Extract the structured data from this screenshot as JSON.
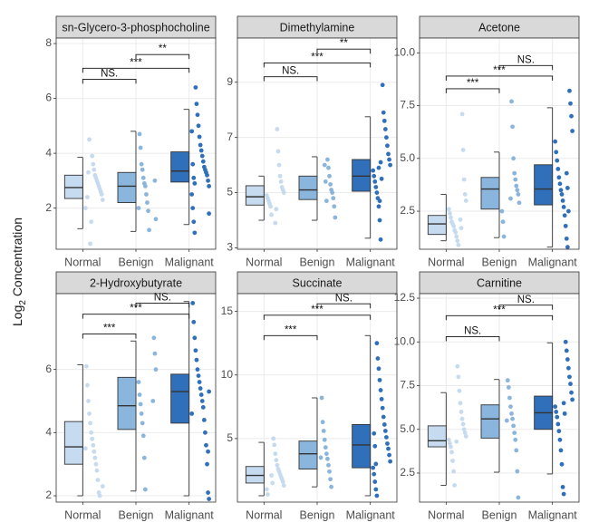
{
  "y_label": [
    "Log",
    "2",
    " Concentration"
  ],
  "chart_data": [
    {
      "type": "box",
      "title": "sn-Glycero-3-phosphocholine",
      "categories": [
        "Normal",
        "Benign",
        "Malignant"
      ],
      "ylim": [
        0.5,
        8.2
      ],
      "yticks": [
        2,
        4,
        6,
        8
      ],
      "groups": [
        {
          "color": "#c6dbef",
          "min": 1.25,
          "q1": 2.35,
          "median": 2.75,
          "q3": 3.2,
          "max": 3.85,
          "points": [
            2.0,
            2.3,
            2.5,
            2.6,
            2.7,
            2.8,
            2.9,
            3.0,
            3.1,
            3.2,
            3.4,
            3.6,
            3.9,
            1.5,
            0.7,
            4.5,
            3.3,
            2.4
          ]
        },
        {
          "color": "#8ab5dc",
          "min": 1.15,
          "q1": 2.2,
          "median": 2.8,
          "q3": 3.3,
          "max": 4.8,
          "points": [
            1.2,
            1.9,
            2.2,
            2.5,
            2.8,
            2.9,
            3.1,
            3.4,
            3.6,
            4.2,
            4.7,
            2.0,
            1.6,
            3.0
          ]
        },
        {
          "color": "#3070bb",
          "min": 1.4,
          "q1": 2.95,
          "median": 3.35,
          "q3": 4.05,
          "max": 5.6,
          "points": [
            1.1,
            1.5,
            2.0,
            2.5,
            2.8,
            3.0,
            3.2,
            3.3,
            3.4,
            3.5,
            3.7,
            3.9,
            4.1,
            4.3,
            4.6,
            5.0,
            5.4,
            5.8,
            6.4,
            2.9,
            3.1,
            3.6,
            4.8,
            1.8
          ]
        }
      ],
      "comparisons": [
        {
          "from": 0,
          "to": 1,
          "y": 6.7,
          "label": "NS."
        },
        {
          "from": 0,
          "to": 2,
          "y": 7.1,
          "label": "***"
        },
        {
          "from": 1,
          "to": 2,
          "y": 7.6,
          "label": "**"
        }
      ]
    },
    {
      "type": "box",
      "title": "Dimethylamine",
      "categories": [
        "Normal",
        "Benign",
        "Malignant"
      ],
      "ylim": [
        2.95,
        10.6
      ],
      "yticks": [
        3,
        5,
        7,
        9
      ],
      "groups": [
        {
          "color": "#c6dbef",
          "min": 4.0,
          "q1": 4.55,
          "median": 4.85,
          "q3": 5.25,
          "max": 5.6,
          "points": [
            4.2,
            4.5,
            4.6,
            4.7,
            4.8,
            4.9,
            5.0,
            5.1,
            5.2,
            5.4,
            5.6,
            6.0,
            6.5,
            7.3,
            4.4,
            3.9
          ]
        },
        {
          "color": "#8ab5dc",
          "min": 4.0,
          "q1": 4.75,
          "median": 5.1,
          "q3": 5.6,
          "max": 6.3,
          "points": [
            4.1,
            4.5,
            4.8,
            5.0,
            5.1,
            5.3,
            5.6,
            5.9,
            6.2,
            4.7,
            5.4,
            6.0
          ]
        },
        {
          "color": "#3070bb",
          "min": 3.35,
          "q1": 5.05,
          "median": 5.6,
          "q3": 6.2,
          "max": 7.75,
          "points": [
            3.3,
            4.0,
            4.5,
            4.8,
            5.0,
            5.2,
            5.4,
            5.6,
            5.8,
            6.0,
            6.2,
            6.4,
            6.7,
            7.0,
            7.3,
            7.6,
            7.9,
            8.9,
            5.5,
            6.1,
            4.7,
            5.9
          ]
        }
      ],
      "comparisons": [
        {
          "from": 0,
          "to": 1,
          "y": 9.2,
          "label": "NS."
        },
        {
          "from": 0,
          "to": 2,
          "y": 9.7,
          "label": "***"
        },
        {
          "from": 1,
          "to": 2,
          "y": 10.2,
          "label": "**"
        }
      ]
    },
    {
      "type": "box",
      "title": "Acetone",
      "categories": [
        "Normal",
        "Benign",
        "Malignant"
      ],
      "ylim": [
        0.7,
        10.7
      ],
      "yticks": [
        2.5,
        {
          "value": 5,
          "label": "5.0"
        },
        7.5,
        {
          "value": 10,
          "label": "10.0"
        }
      ],
      "groups": [
        {
          "color": "#c6dbef",
          "min": 1.1,
          "q1": 1.4,
          "median": 1.9,
          "q3": 2.3,
          "max": 3.3,
          "points": [
            0.9,
            1.1,
            1.3,
            1.5,
            1.6,
            1.8,
            1.9,
            2.0,
            2.2,
            2.4,
            2.6,
            3.0,
            3.3,
            4.0,
            5.4,
            7.1,
            1.7,
            2.1
          ]
        },
        {
          "color": "#8ab5dc",
          "min": 1.25,
          "q1": 2.6,
          "median": 3.55,
          "q3": 4.1,
          "max": 5.3,
          "points": [
            1.3,
            2.0,
            2.5,
            2.9,
            3.3,
            3.5,
            3.7,
            4.0,
            4.3,
            5.0,
            6.5,
            7.7,
            3.1
          ]
        },
        {
          "color": "#3070bb",
          "min": 0.8,
          "q1": 2.8,
          "median": 3.55,
          "q3": 4.7,
          "max": 7.4,
          "points": [
            0.8,
            1.2,
            1.8,
            2.3,
            2.7,
            3.0,
            3.3,
            3.5,
            3.8,
            4.1,
            4.5,
            4.9,
            5.3,
            5.8,
            6.3,
            7.0,
            7.6,
            8.2,
            2.5,
            3.6,
            4.3
          ]
        }
      ],
      "comparisons": [
        {
          "from": 0,
          "to": 1,
          "y": 8.3,
          "label": "***"
        },
        {
          "from": 0,
          "to": 2,
          "y": 8.9,
          "label": "***"
        },
        {
          "from": 1,
          "to": 2,
          "y": 9.4,
          "label": "NS."
        }
      ]
    },
    {
      "type": "box",
      "title": "2-Hydroxybutyrate",
      "categories": [
        "Normal",
        "Benign",
        "Malignant"
      ],
      "ylim": [
        1.8,
        8.4
      ],
      "yticks": [
        2,
        4,
        6
      ],
      "groups": [
        {
          "color": "#c6dbef",
          "min": 2.0,
          "q1": 3.0,
          "median": 3.55,
          "q3": 4.35,
          "max": 6.15,
          "points": [
            2.0,
            2.1,
            2.5,
            2.8,
            3.0,
            3.2,
            3.4,
            3.6,
            3.8,
            4.0,
            4.3,
            4.6,
            5.0,
            5.5,
            6.1,
            3.5,
            2.3
          ]
        },
        {
          "color": "#8ab5dc",
          "min": 2.15,
          "q1": 4.1,
          "median": 4.85,
          "q3": 5.75,
          "max": 6.9,
          "points": [
            2.2,
            3.2,
            3.9,
            4.3,
            4.6,
            4.9,
            5.2,
            5.6,
            6.0,
            6.5,
            7.0,
            5.0
          ]
        },
        {
          "color": "#3070bb",
          "min": 2.0,
          "q1": 4.3,
          "median": 5.3,
          "q3": 5.85,
          "max": 8.15,
          "points": [
            1.9,
            2.1,
            3.0,
            3.6,
            4.0,
            4.4,
            4.8,
            5.0,
            5.2,
            5.4,
            5.6,
            5.8,
            6.0,
            6.3,
            6.6,
            7.0,
            7.5,
            8.1,
            4.6,
            5.3,
            3.4
          ]
        }
      ],
      "comparisons": [
        {
          "from": 0,
          "to": 1,
          "y": 7.12,
          "label": "***"
        },
        {
          "from": 0,
          "to": 2,
          "y": 7.75,
          "label": "***"
        },
        {
          "from": 1,
          "to": 2,
          "y": 8.1,
          "label": "NS."
        }
      ]
    },
    {
      "type": "box",
      "title": "Succinate",
      "categories": [
        "Normal",
        "Benign",
        "Malignant"
      ],
      "ylim": [
        0,
        16.4
      ],
      "yticks": [
        5,
        10,
        15
      ],
      "groups": [
        {
          "color": "#c6dbef",
          "min": 0.5,
          "q1": 1.5,
          "median": 2.1,
          "q3": 2.8,
          "max": 4.7,
          "points": [
            0.6,
            1.0,
            1.3,
            1.6,
            1.8,
            2.0,
            2.2,
            2.4,
            2.6,
            2.9,
            3.3,
            3.8,
            4.5,
            5.0,
            1.5,
            2.1
          ]
        },
        {
          "color": "#8ab5dc",
          "min": 1.2,
          "q1": 2.6,
          "median": 3.8,
          "q3": 4.8,
          "max": 8.2,
          "points": [
            1.2,
            1.8,
            2.4,
            2.9,
            3.4,
            3.8,
            4.3,
            4.9,
            5.6,
            6.3,
            8.2,
            3.5
          ]
        },
        {
          "color": "#3070bb",
          "min": 0.5,
          "q1": 2.7,
          "median": 4.5,
          "q3": 6.1,
          "max": 13.1,
          "points": [
            0.5,
            1.0,
            1.6,
            2.2,
            2.7,
            3.2,
            3.7,
            4.2,
            4.6,
            5.1,
            5.6,
            6.1,
            6.7,
            7.4,
            8.1,
            8.8,
            9.6,
            10.5,
            11.3,
            12.5,
            3.0,
            4.4,
            5.4
          ]
        }
      ],
      "comparisons": [
        {
          "from": 0,
          "to": 1,
          "y": 13.1,
          "label": "***"
        },
        {
          "from": 0,
          "to": 2,
          "y": 14.7,
          "label": "***"
        },
        {
          "from": 1,
          "to": 2,
          "y": 15.6,
          "label": "NS."
        }
      ]
    },
    {
      "type": "box",
      "title": "Carnitine",
      "categories": [
        "Normal",
        "Benign",
        "Malignant"
      ],
      "ylim": [
        0.84,
        12.76
      ],
      "yticks": [
        2.5,
        {
          "value": 5,
          "label": "5.0"
        },
        7.5,
        {
          "value": 10,
          "label": "10.0"
        },
        12.5
      ],
      "groups": [
        {
          "color": "#c6dbef",
          "min": 1.8,
          "q1": 4.0,
          "median": 4.35,
          "q3": 5.2,
          "max": 7.1,
          "points": [
            1.8,
            2.6,
            3.2,
            3.7,
            4.0,
            4.2,
            4.4,
            4.6,
            4.8,
            5.0,
            5.3,
            5.6,
            6.0,
            6.5,
            7.2,
            8.0,
            8.6,
            4.3
          ]
        },
        {
          "color": "#8ab5dc",
          "min": 2.55,
          "q1": 4.5,
          "median": 5.6,
          "q3": 6.4,
          "max": 7.85,
          "points": [
            1.1,
            2.6,
            3.8,
            4.4,
            4.8,
            5.2,
            5.6,
            5.9,
            6.3,
            6.8,
            7.4,
            7.8,
            5.5
          ]
        },
        {
          "color": "#3070bb",
          "min": 2.45,
          "q1": 5.0,
          "median": 5.95,
          "q3": 6.9,
          "max": 9.95,
          "points": [
            1.3,
            1.7,
            3.0,
            3.8,
            4.4,
            4.9,
            5.3,
            5.7,
            6.0,
            6.3,
            6.7,
            7.1,
            7.6,
            8.0,
            8.5,
            9.0,
            9.5,
            10.0,
            5.9,
            6.5
          ]
        }
      ],
      "comparisons": [
        {
          "from": 0,
          "to": 1,
          "y": 10.3,
          "label": "NS."
        },
        {
          "from": 0,
          "to": 2,
          "y": 11.5,
          "label": "***"
        },
        {
          "from": 1,
          "to": 2,
          "y": 12.1,
          "label": "NS."
        }
      ]
    }
  ]
}
